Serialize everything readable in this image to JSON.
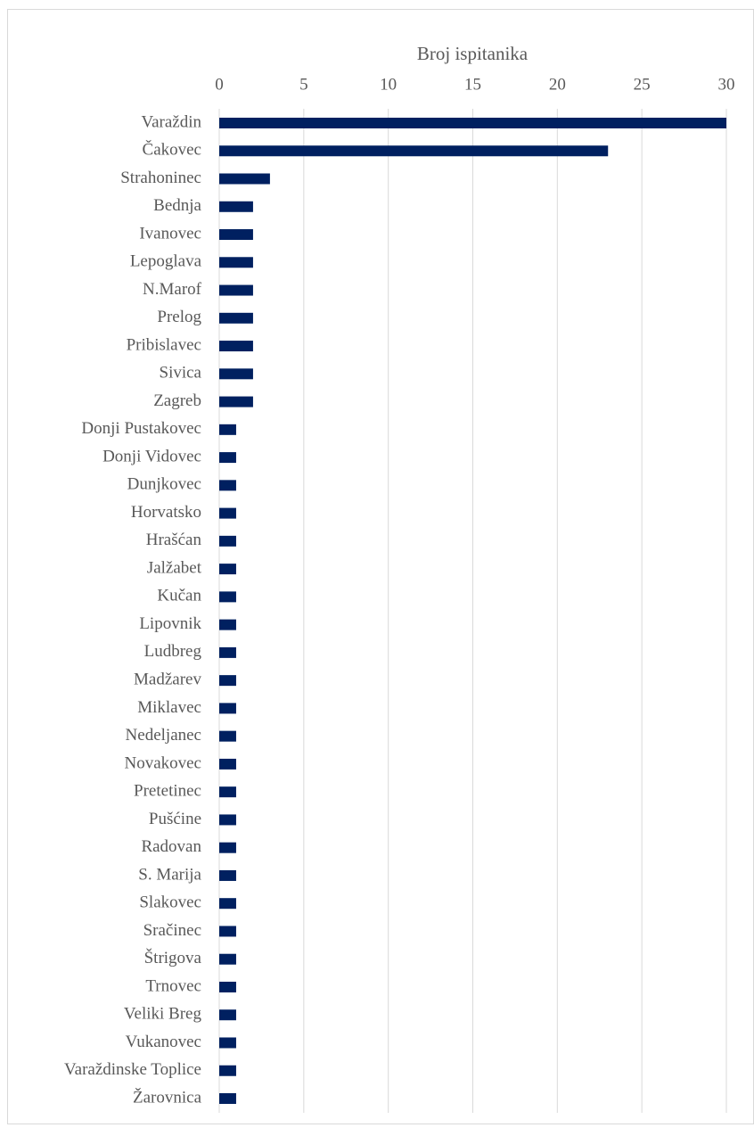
{
  "chart_data": {
    "type": "bar",
    "orientation": "horizontal",
    "x_label": "Broj ispitanika",
    "categories": [
      "Varaždin",
      "Čakovec",
      "Strahoninec",
      "Bednja",
      "Ivanovec",
      "Lepoglava",
      "N.Marof",
      "Prelog",
      "Pribislavec",
      "Sivica",
      "Zagreb",
      "Donji Pustakovec",
      "Donji Vidovec",
      "Dunjkovec",
      "Horvatsko",
      "Hrašćan",
      "Jalžabet",
      "Kučan",
      "Lipovnik",
      "Ludbreg",
      "Madžarev",
      "Miklavec",
      "Nedeljanec",
      "Novakovec",
      "Pretetinec",
      "Pušćine",
      "Radovan",
      "S. Marija",
      "Slakovec",
      "Sračinec",
      "Štrigova",
      "Trnovec",
      "Veliki Breg",
      "Vukanovec",
      "Varaždinske Toplice",
      "Žarovnica"
    ],
    "values": [
      30,
      23,
      3,
      2,
      2,
      2,
      2,
      2,
      2,
      2,
      2,
      1,
      1,
      1,
      1,
      1,
      1,
      1,
      1,
      1,
      1,
      1,
      1,
      1,
      1,
      1,
      1,
      1,
      1,
      1,
      1,
      1,
      1,
      1,
      1,
      1
    ],
    "color": "#002060",
    "xlim": [
      0,
      30
    ],
    "xticks": [
      0,
      5,
      10,
      15,
      20,
      25,
      30
    ],
    "grid": true
  }
}
